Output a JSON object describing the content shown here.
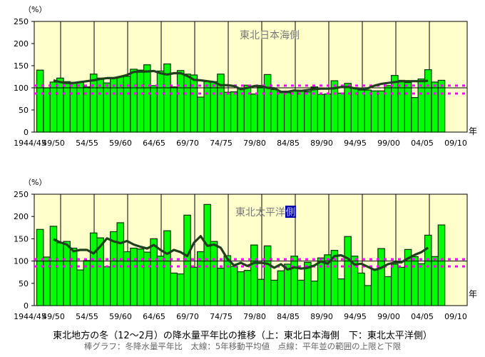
{
  "caption": {
    "title": "東北地方の冬（12～2月）の降水量平年比の推移（上：東北日本海側　下：東北太平洋側）",
    "legend": "棒グラフ：冬降水量平年比　太線：5年移動平均値　点線：平年並の範囲の上限と下限"
  },
  "colors": {
    "bar": "#00ff00",
    "bar_border": "#003300",
    "moving_average": "#1f3f1f",
    "normal_range": "#ff00ff",
    "plot_bg": "#ffffcc",
    "highlight": "#0000aa"
  },
  "chart_data": [
    {
      "type": "bar",
      "title": "東北日本海側",
      "ylabel": "（%）",
      "xlabel": "年",
      "ylim": [
        0,
        250
      ],
      "yticks": [
        0,
        50,
        100,
        150,
        200,
        250
      ],
      "xtick_labels": [
        "1944/45",
        "49/50",
        "54/55",
        "59/60",
        "64/65",
        "69/70",
        "74/75",
        "79/80",
        "84/85",
        "89/90",
        "94/95",
        "99/00",
        "04/05",
        "09/10"
      ],
      "first_year": "1944/45",
      "values": [
        140,
        100,
        113,
        122,
        114,
        111,
        113,
        102,
        131,
        122,
        111,
        122,
        125,
        126,
        142,
        140,
        152,
        105,
        138,
        154,
        102,
        139,
        131,
        129,
        79,
        114,
        114,
        131,
        90,
        91,
        99,
        106,
        86,
        102,
        130,
        96,
        89,
        89,
        94,
        94,
        91,
        102,
        85,
        86,
        116,
        88,
        110,
        100,
        95,
        95,
        93,
        93,
        105,
        128,
        117,
        112,
        78,
        120,
        141,
        113,
        117
      ],
      "moving_average": [
        null,
        null,
        117,
        113,
        111,
        111,
        113,
        115,
        117,
        120,
        122,
        122,
        125,
        129,
        136,
        137,
        137,
        138,
        133,
        130,
        133,
        133,
        127,
        118,
        117,
        115,
        113,
        106,
        106,
        104,
        97,
        100,
        104,
        104,
        100,
        99,
        91,
        91,
        94,
        93,
        95,
        97,
        98,
        98,
        99,
        102,
        102,
        99,
        98,
        99,
        105,
        109,
        111,
        113,
        115,
        115,
        115,
        115,
        116
      ],
      "normal_upper": 105,
      "normal_lower": 87,
      "reference_line": 100
    },
    {
      "type": "bar",
      "title": "東北太平洋側",
      "ylabel": "（%）",
      "xlabel": "年",
      "ylim": [
        0,
        250
      ],
      "yticks": [
        0,
        50,
        100,
        150,
        200,
        250
      ],
      "xtick_labels": [
        "1944/45",
        "49/50",
        "54/55",
        "59/60",
        "64/65",
        "69/70",
        "74/75",
        "79/80",
        "84/85",
        "89/90",
        "94/95",
        "99/00",
        "04/05",
        "09/10"
      ],
      "first_year": "1944/45",
      "values": [
        171,
        109,
        178,
        141,
        144,
        129,
        80,
        101,
        163,
        152,
        87,
        166,
        186,
        121,
        129,
        127,
        120,
        150,
        111,
        168,
        73,
        71,
        203,
        86,
        121,
        227,
        144,
        84,
        112,
        88,
        76,
        79,
        136,
        59,
        134,
        57,
        78,
        93,
        111,
        57,
        97,
        55,
        107,
        114,
        124,
        60,
        155,
        111,
        73,
        45,
        82,
        128,
        65,
        93,
        86,
        126,
        110,
        94,
        158,
        110,
        181
      ],
      "moving_average": [
        null,
        null,
        149,
        142,
        137,
        122,
        125,
        125,
        117,
        133,
        151,
        144,
        140,
        145,
        137,
        132,
        128,
        136,
        125,
        116,
        125,
        120,
        111,
        141,
        156,
        134,
        137,
        130,
        105,
        90,
        96,
        89,
        96,
        96,
        94,
        85,
        93,
        81,
        86,
        83,
        85,
        90,
        99,
        94,
        111,
        113,
        106,
        92,
        94,
        87,
        80,
        85,
        93,
        97,
        97,
        106,
        114,
        120,
        130
      ],
      "normal_upper": 104,
      "normal_lower": 88,
      "reference_line": 100
    }
  ]
}
